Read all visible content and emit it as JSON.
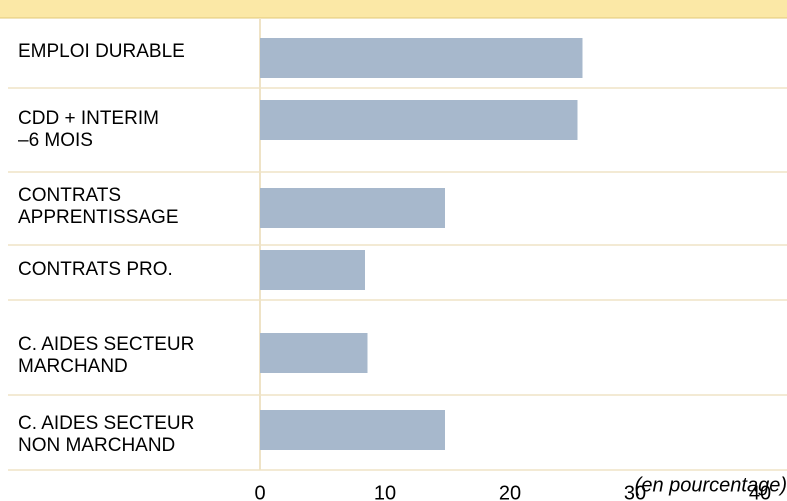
{
  "chart_data": {
    "type": "bar",
    "orientation": "horizontal",
    "categories": [
      "EMPLOI DURABLE",
      "CDD + INTERIM\n–6 MOIS",
      "CONTRATS\nAPPRENTISSAGE",
      "CONTRATS PRO.",
      "C. AIDES SECTEUR\nMARCHAND",
      "C. AIDES SECTEUR\nNON MARCHAND"
    ],
    "values": [
      25.8,
      25.4,
      14.8,
      8.4,
      8.6,
      14.8
    ],
    "color": "#a7b8cc",
    "xlim": [
      0,
      40
    ],
    "xticks": [
      0,
      10,
      20,
      30,
      40
    ],
    "annotation": "(en pourcentage)"
  }
}
